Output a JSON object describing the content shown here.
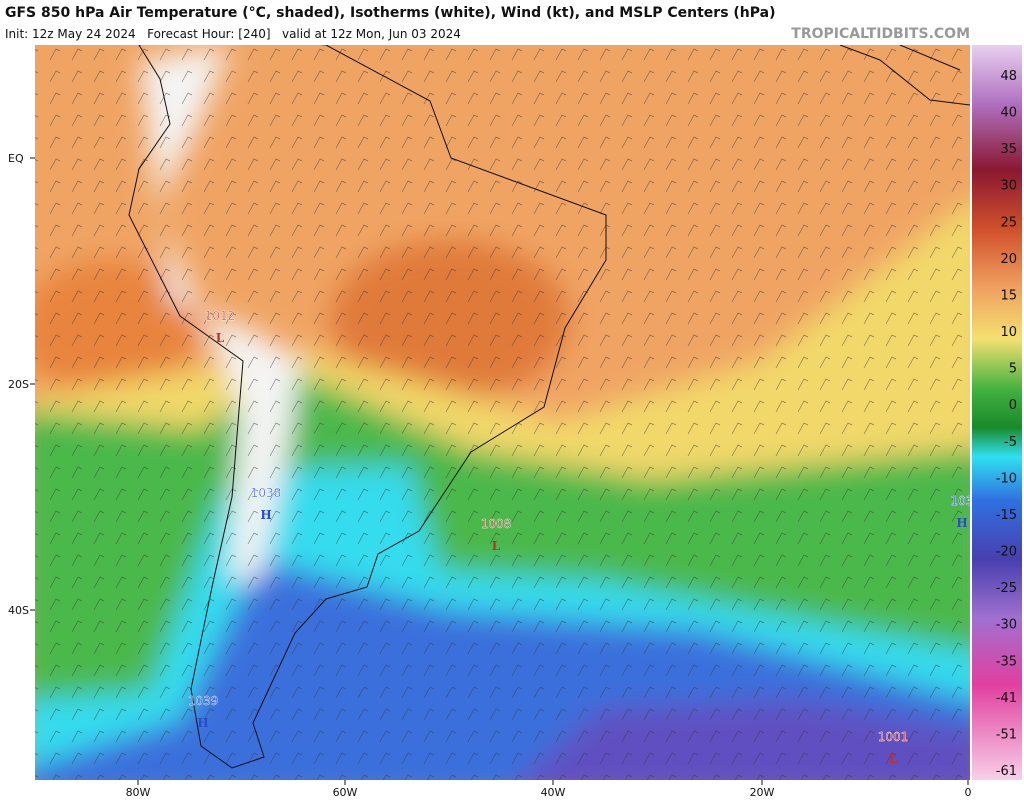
{
  "header": {
    "title": "GFS 850 hPa Air Temperature (°C, shaded), Isotherms (white), Wind (kt), and MSLP Centers (hPa)",
    "subtitle": "Init: 12z May 24 2024   Forecast Hour: [240]   valid at 12z Mon, Jun 03 2024",
    "watermark": "TROPICALTIDBITS.COM"
  },
  "map": {
    "lat_labels": [
      "EQ",
      "20S",
      "40S"
    ],
    "lon_labels": [
      "80W",
      "60W",
      "40W",
      "20W",
      "0"
    ],
    "pressure_centers": [
      {
        "value": "1012",
        "type": "L"
      },
      {
        "value": "1038",
        "type": "H"
      },
      {
        "value": "1008",
        "type": "L"
      },
      {
        "value": "1039",
        "type": "H"
      },
      {
        "value": "1001",
        "type": "L"
      },
      {
        "value": "103",
        "type": "H"
      }
    ]
  },
  "colorbar": {
    "labels": [
      48,
      40,
      35,
      30,
      25,
      20,
      15,
      10,
      5,
      0,
      -5,
      -10,
      -15,
      -20,
      -25,
      -30,
      -35,
      -41,
      -51,
      -61
    ]
  }
}
